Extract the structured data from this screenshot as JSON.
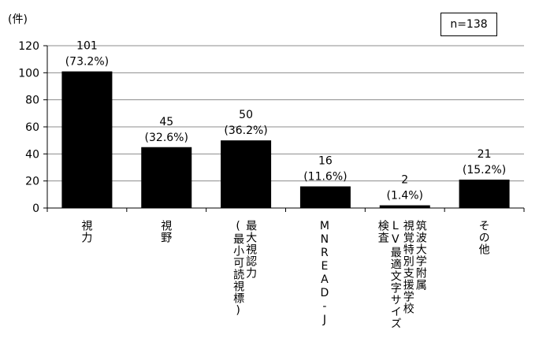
{
  "unit": "(件)",
  "n_label": "n=138",
  "chart_data": {
    "type": "bar",
    "categories": [
      [
        "視力"
      ],
      [
        "視野"
      ],
      [
        "最大視認力",
        "(最小可読視標)"
      ],
      [
        "MNREAD-J"
      ],
      [
        "筑波大学附属",
        "視覚特別支援学校",
        "LV最適文字サイズ",
        "検査"
      ],
      [
        "その他"
      ]
    ],
    "values": [
      101,
      45,
      50,
      16,
      2,
      21
    ],
    "pct_labels": [
      "(73.2%)",
      "(32.6%)",
      "(36.2%)",
      "(11.6%)",
      "(1.4%)",
      "(15.2%)"
    ],
    "ylim": [
      0,
      120
    ],
    "yticks": [
      0,
      20,
      40,
      60,
      80,
      100,
      120
    ],
    "bar_color": "#000000",
    "grid": true
  }
}
